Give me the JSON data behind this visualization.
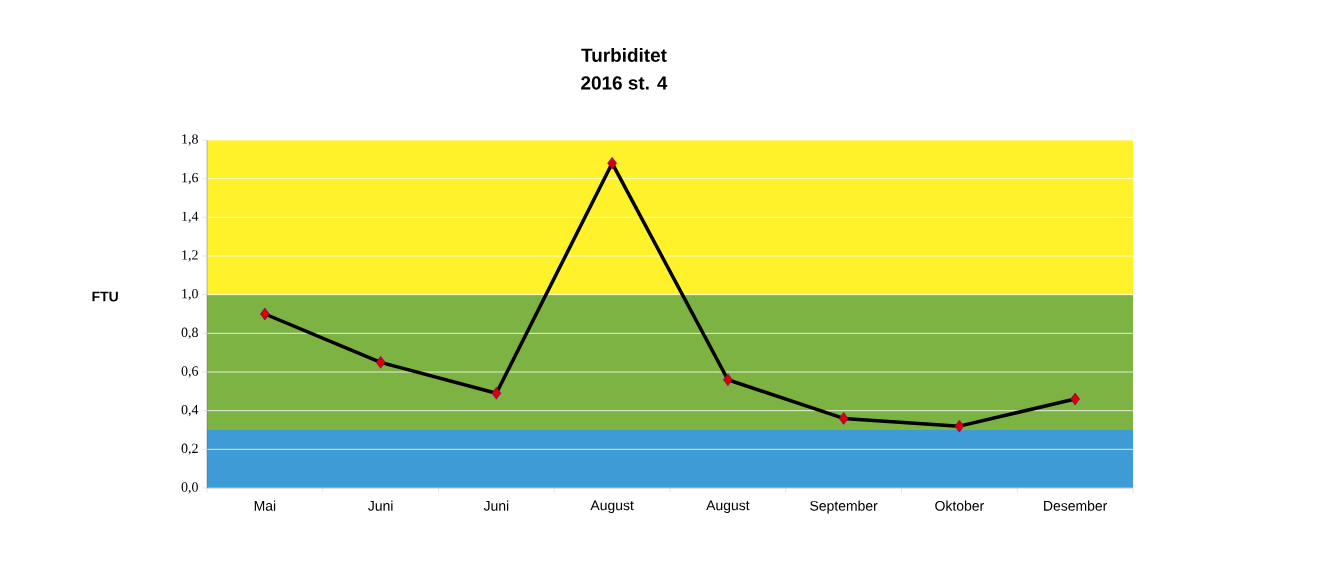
{
  "chart_data": {
    "type": "line",
    "title": "Turbiditet",
    "subtitle": "2016 st. 4",
    "ylabel": "FTU",
    "categories": [
      "Mai",
      "Juni",
      "Juni",
      "August",
      "August",
      "September",
      "Oktober",
      "Desember"
    ],
    "series": [
      {
        "color": "#000000",
        "values": [
          0.9,
          0.65,
          0.49,
          1.68,
          0.56,
          0.36,
          0.32,
          0.46
        ]
      }
    ],
    "marker": "diamond",
    "line_style": "solid",
    "ylim": [
      0,
      1.8
    ],
    "yticks": [
      {
        "value": 0,
        "label": "0,0"
      },
      {
        "value": 0.2,
        "label": "0,2"
      },
      {
        "value": 0.4,
        "label": "0,4"
      },
      {
        "value": 0.6,
        "label": "0,6"
      },
      {
        "value": 0.8,
        "label": "0,8"
      },
      {
        "value": 1.0,
        "label": "1,0"
      },
      {
        "value": 1.2,
        "label": "1,2"
      },
      {
        "value": 1.4,
        "label": "1,4"
      },
      {
        "value": 1.6,
        "label": "1,6"
      },
      {
        "value": 1.8,
        "label": "1,8"
      }
    ],
    "bands": [
      {
        "axis": "y",
        "from": 0,
        "to": 0.3,
        "color": "#3f9bd6"
      },
      {
        "axis": "y",
        "from": 0.3,
        "to": 1.0,
        "color": "#7cb342"
      },
      {
        "axis": "y",
        "from": 1.0,
        "to": 1.8,
        "color": "#fff12a"
      }
    ],
    "grid": "y",
    "legend": false
  }
}
